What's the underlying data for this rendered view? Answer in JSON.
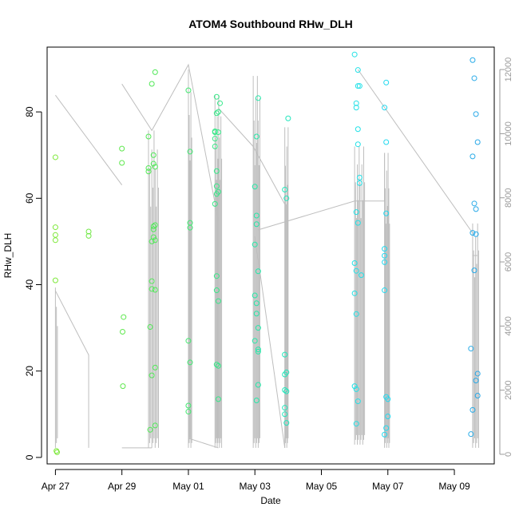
{
  "chart_data": {
    "type": "scatter",
    "title": "ATOM4 Southbound RHw_DLH",
    "xlabel": "Date",
    "ylabel": "RHw_DLH",
    "x_tick_labels": [
      "Apr 27",
      "Apr 29",
      "May 01",
      "May 03",
      "May 05",
      "May 07",
      "May 09"
    ],
    "x_tick_days": [
      27,
      29,
      31,
      33,
      35,
      37,
      39
    ],
    "xlim_days": [
      26.75,
      40.2
    ],
    "y_left": {
      "ticks": [
        0,
        20,
        40,
        60,
        80
      ],
      "ylim": [
        -1.5,
        95
      ]
    },
    "y_right": {
      "ticks": [
        0,
        2000,
        4000,
        6000,
        8000,
        10000,
        12000
      ],
      "ylim": [
        -300,
        12700
      ]
    },
    "grid": false,
    "legend": "none",
    "colors": {
      "trace": "#bebebe",
      "axis": "#000000",
      "right_axis": "#9a9a9a",
      "point_gradient": [
        "#7ee83a",
        "#4de85a",
        "#22e8b0",
        "#22e0f0",
        "#28a8e8"
      ]
    },
    "series": [
      {
        "name": "RHw_DLH",
        "points": [
          [
            27.0,
            69.5
          ],
          [
            27.0,
            53.3
          ],
          [
            27.0,
            51.5
          ],
          [
            27.0,
            50.3
          ],
          [
            27.0,
            41.0
          ],
          [
            27.03,
            1.5
          ],
          [
            27.05,
            1.2
          ],
          [
            28.0,
            52.3
          ],
          [
            28.0,
            51.3
          ],
          [
            29.0,
            71.5
          ],
          [
            29.0,
            68.2
          ],
          [
            29.05,
            32.5
          ],
          [
            29.02,
            29.1
          ],
          [
            29.03,
            16.5
          ],
          [
            29.8,
            74.3
          ],
          [
            29.8,
            67.0
          ],
          [
            29.8,
            66.2
          ],
          [
            29.85,
            30.2
          ],
          [
            29.85,
            6.4
          ],
          [
            29.9,
            86.5
          ],
          [
            29.9,
            50.0
          ],
          [
            29.9,
            40.8
          ],
          [
            29.9,
            39.0
          ],
          [
            29.9,
            19.0
          ],
          [
            29.95,
            70.0
          ],
          [
            29.95,
            68.0
          ],
          [
            29.95,
            53.5
          ],
          [
            29.95,
            52.8
          ],
          [
            29.95,
            51.0
          ],
          [
            30.0,
            89.2
          ],
          [
            30.0,
            67.3
          ],
          [
            30.0,
            53.8
          ],
          [
            30.0,
            50.3
          ],
          [
            30.0,
            38.8
          ],
          [
            30.0,
            20.8
          ],
          [
            30.0,
            7.4
          ],
          [
            31.0,
            85.0
          ],
          [
            31.05,
            70.8
          ],
          [
            31.05,
            54.3
          ],
          [
            31.05,
            53.2
          ],
          [
            31.0,
            27.0
          ],
          [
            31.05,
            22.0
          ],
          [
            31.0,
            12.0
          ],
          [
            31.0,
            10.6
          ],
          [
            31.8,
            75.5
          ],
          [
            31.8,
            75.3
          ],
          [
            31.8,
            73.8
          ],
          [
            31.8,
            72.0
          ],
          [
            31.85,
            83.5
          ],
          [
            31.85,
            79.7
          ],
          [
            31.85,
            66.3
          ],
          [
            31.85,
            62.8
          ],
          [
            31.85,
            61.0
          ],
          [
            31.8,
            58.7
          ],
          [
            31.85,
            42.0
          ],
          [
            31.85,
            38.7
          ],
          [
            31.85,
            21.5
          ],
          [
            31.9,
            80.0
          ],
          [
            31.9,
            75.3
          ],
          [
            31.9,
            61.5
          ],
          [
            31.9,
            36.2
          ],
          [
            31.9,
            21.2
          ],
          [
            31.9,
            13.5
          ],
          [
            31.95,
            82.0
          ],
          [
            33.0,
            62.7
          ],
          [
            33.05,
            74.3
          ],
          [
            33.05,
            56.0
          ],
          [
            33.05,
            54.0
          ],
          [
            33.0,
            49.3
          ],
          [
            33.1,
            43.1
          ],
          [
            33.0,
            37.5
          ],
          [
            33.05,
            35.7
          ],
          [
            33.05,
            33.3
          ],
          [
            33.1,
            30.0
          ],
          [
            33.0,
            27.0
          ],
          [
            33.1,
            25.0
          ],
          [
            33.1,
            24.5
          ],
          [
            33.1,
            16.8
          ],
          [
            33.05,
            13.2
          ],
          [
            33.1,
            83.2
          ],
          [
            33.9,
            62.0
          ],
          [
            33.95,
            60.0
          ],
          [
            33.9,
            23.8
          ],
          [
            33.9,
            19.2
          ],
          [
            33.95,
            19.7
          ],
          [
            33.9,
            15.6
          ],
          [
            33.95,
            15.3
          ],
          [
            33.9,
            11.5
          ],
          [
            33.9,
            10.0
          ],
          [
            33.95,
            8.0
          ],
          [
            34.0,
            78.5
          ],
          [
            36.0,
            93.3
          ],
          [
            36.1,
            89.7
          ],
          [
            36.1,
            86.0
          ],
          [
            36.15,
            86.0
          ],
          [
            36.05,
            82.0
          ],
          [
            36.05,
            81.0
          ],
          [
            36.1,
            76.0
          ],
          [
            36.1,
            72.5
          ],
          [
            36.15,
            64.8
          ],
          [
            36.15,
            63.5
          ],
          [
            36.05,
            56.8
          ],
          [
            36.1,
            54.3
          ],
          [
            36.0,
            45.0
          ],
          [
            36.05,
            43.2
          ],
          [
            36.2,
            42.2
          ],
          [
            36.0,
            38.0
          ],
          [
            36.05,
            33.2
          ],
          [
            36.0,
            16.5
          ],
          [
            36.05,
            15.8
          ],
          [
            36.1,
            13.0
          ],
          [
            36.05,
            7.8
          ],
          [
            36.95,
            86.8
          ],
          [
            36.9,
            81.0
          ],
          [
            36.95,
            73.0
          ],
          [
            36.95,
            56.5
          ],
          [
            36.9,
            48.3
          ],
          [
            36.9,
            46.7
          ],
          [
            36.9,
            45.2
          ],
          [
            36.9,
            38.7
          ],
          [
            36.95,
            14.0
          ],
          [
            37.0,
            13.5
          ],
          [
            37.0,
            9.5
          ],
          [
            36.95,
            6.8
          ],
          [
            36.9,
            5.3
          ],
          [
            39.55,
            92.0
          ],
          [
            39.6,
            87.8
          ],
          [
            39.65,
            79.5
          ],
          [
            39.55,
            69.7
          ],
          [
            39.7,
            73.0
          ],
          [
            39.6,
            58.8
          ],
          [
            39.65,
            57.5
          ],
          [
            39.55,
            52.0
          ],
          [
            39.65,
            51.7
          ],
          [
            39.6,
            43.3
          ],
          [
            39.5,
            25.2
          ],
          [
            39.7,
            19.4
          ],
          [
            39.65,
            17.8
          ],
          [
            39.7,
            14.3
          ],
          [
            39.55,
            11.0
          ],
          [
            39.5,
            5.4
          ]
        ]
      }
    ]
  }
}
